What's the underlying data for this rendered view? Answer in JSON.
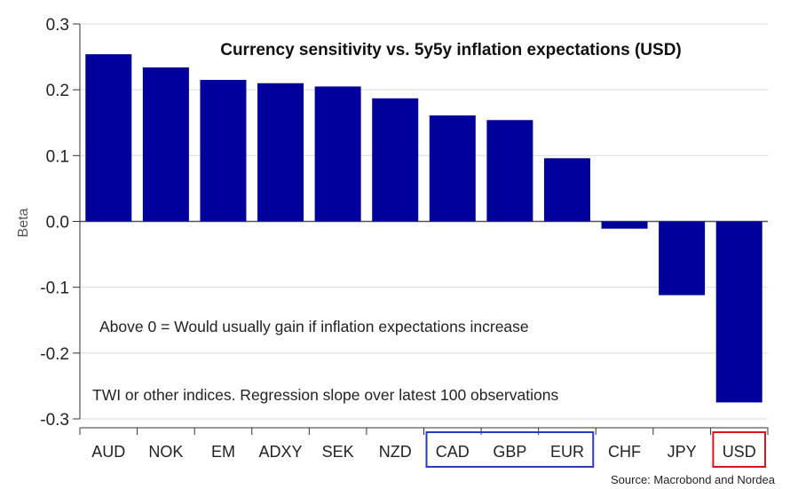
{
  "chart_data": {
    "type": "bar",
    "title": "Currency sensitivity vs. 5y5y inflation expectations (USD)",
    "ylabel": "Beta",
    "xlabel": "",
    "categories": [
      "AUD",
      "NOK",
      "EM",
      "ADXY",
      "SEK",
      "NZD",
      "CAD",
      "GBP",
      "EUR",
      "CHF",
      "JPY",
      "USD"
    ],
    "values": [
      0.254,
      0.234,
      0.215,
      0.21,
      0.205,
      0.187,
      0.161,
      0.154,
      0.096,
      -0.011,
      -0.112,
      -0.275
    ],
    "ylim": [
      -0.3,
      0.3
    ],
    "yticks": [
      0.3,
      0.2,
      0.1,
      0.0,
      -0.1,
      -0.2,
      -0.3
    ],
    "ytick_labels": [
      "0.3",
      "0.2",
      "0.1",
      "0.0",
      "-0.1",
      "-0.2",
      "-0.3"
    ],
    "grid": true,
    "bar_color": "#00009a",
    "annotations": [
      "Above 0 = Would usually gain if inflation expectations increase",
      "TWI or other indices. Regression slope over latest 100 observations"
    ],
    "highlight_groups": [
      {
        "categories": [
          "CAD",
          "GBP",
          "EUR"
        ],
        "color": "#2b3bbf"
      },
      {
        "categories": [
          "USD"
        ],
        "color": "#d9141c"
      }
    ],
    "source": "Source: Macrobond and Nordea"
  }
}
